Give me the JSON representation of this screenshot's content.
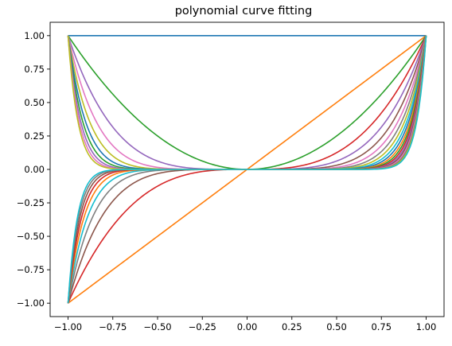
{
  "chart_data": {
    "type": "line",
    "title": "polynomial curve fitting",
    "xlabel": "",
    "ylabel": "",
    "xlim": [
      -1.1,
      1.1
    ],
    "ylim": [
      -1.1,
      1.1
    ],
    "x_ticks": [
      -1.0,
      -0.75,
      -0.5,
      -0.25,
      0.0,
      0.25,
      0.5,
      0.75,
      1.0
    ],
    "x_tick_labels": [
      "−1.00",
      "−0.75",
      "−0.50",
      "−0.25",
      "0.00",
      "0.25",
      "0.50",
      "0.75",
      "1.00"
    ],
    "y_ticks": [
      1.0,
      0.75,
      0.5,
      0.25,
      0.0,
      -0.25,
      -0.5,
      -0.75,
      -1.0
    ],
    "y_tick_labels": [
      "1.00",
      "0.75",
      "0.50",
      "0.25",
      "0.00",
      "−0.25",
      "−0.50",
      "−0.75",
      "−1.00"
    ],
    "grid": false,
    "legend": "none",
    "x": [
      -1.0,
      -0.9,
      -0.8,
      -0.7,
      -0.6,
      -0.5,
      -0.4,
      -0.3,
      -0.2,
      -0.1,
      0.0,
      0.1,
      0.2,
      0.3,
      0.4,
      0.5,
      0.6,
      0.7,
      0.8,
      0.9,
      1.0
    ],
    "series": [
      {
        "color": "#1f77b4",
        "values": [
          1,
          1,
          1,
          1,
          1,
          1,
          1,
          1,
          1,
          1,
          1,
          1,
          1,
          1,
          1,
          1,
          1,
          1,
          1,
          1,
          1
        ]
      },
      {
        "color": "#ff7f0e",
        "values": [
          -1,
          -0.9,
          -0.8,
          -0.7,
          -0.6,
          -0.5,
          -0.4,
          -0.3,
          -0.2,
          -0.1,
          0,
          0.1,
          0.2,
          0.3,
          0.4,
          0.5,
          0.6,
          0.7,
          0.8,
          0.9,
          1
        ]
      },
      {
        "color": "#2ca02c",
        "values": [
          1,
          0.81,
          0.64,
          0.49,
          0.36,
          0.25,
          0.16,
          0.09,
          0.04,
          0.01,
          0,
          0.01,
          0.04,
          0.09,
          0.16,
          0.25,
          0.36,
          0.49,
          0.64,
          0.81,
          1
        ]
      },
      {
        "color": "#d62728",
        "values": [
          -1,
          -0.729,
          -0.512,
          -0.343,
          -0.216,
          -0.125,
          -0.064,
          -0.027,
          -0.008,
          -0.001,
          0,
          0.001,
          0.008,
          0.027,
          0.064,
          0.125,
          0.216,
          0.343,
          0.512,
          0.729,
          1
        ]
      },
      {
        "color": "#9467bd",
        "values": [
          1,
          0.656,
          0.41,
          0.24,
          0.13,
          0.063,
          0.026,
          0.008,
          0.002,
          0,
          0,
          0,
          0.002,
          0.008,
          0.026,
          0.063,
          0.13,
          0.24,
          0.41,
          0.656,
          1
        ]
      },
      {
        "color": "#8c564b",
        "values": [
          -1,
          -0.59,
          -0.328,
          -0.168,
          -0.078,
          -0.031,
          -0.01,
          -0.002,
          0,
          0,
          0,
          0,
          0,
          0.002,
          0.01,
          0.031,
          0.078,
          0.168,
          0.328,
          0.59,
          1
        ]
      },
      {
        "color": "#e377c2",
        "values": [
          1,
          0.531,
          0.262,
          0.118,
          0.047,
          0.016,
          0.004,
          0.001,
          0,
          0,
          0,
          0,
          0,
          0.001,
          0.004,
          0.016,
          0.047,
          0.118,
          0.262,
          0.531,
          1
        ]
      },
      {
        "color": "#7f7f7f",
        "values": [
          -1,
          -0.478,
          -0.21,
          -0.082,
          -0.028,
          -0.008,
          -0.002,
          0,
          0,
          0,
          0,
          0,
          0,
          0,
          0.002,
          0.008,
          0.028,
          0.082,
          0.21,
          0.478,
          1
        ]
      },
      {
        "color": "#bcbd22",
        "values": [
          1,
          0.43,
          0.168,
          0.058,
          0.017,
          0.004,
          0.001,
          0,
          0,
          0,
          0,
          0,
          0,
          0,
          0.001,
          0.004,
          0.017,
          0.058,
          0.168,
          0.43,
          1
        ]
      },
      {
        "color": "#17becf",
        "values": [
          -1,
          -0.387,
          -0.134,
          -0.04,
          -0.01,
          -0.002,
          0,
          0,
          0,
          0,
          0,
          0,
          0,
          0,
          0,
          0.002,
          0.01,
          0.04,
          0.134,
          0.387,
          1
        ]
      },
      {
        "color": "#1f77b4",
        "values": [
          1,
          0.349,
          0.107,
          0.028,
          0.006,
          0.001,
          0,
          0,
          0,
          0,
          0,
          0,
          0,
          0,
          0,
          0.001,
          0.006,
          0.028,
          0.107,
          0.349,
          1
        ]
      },
      {
        "color": "#ff7f0e",
        "values": [
          -1,
          -0.314,
          -0.086,
          -0.02,
          -0.004,
          0,
          0,
          0,
          0,
          0,
          0,
          0,
          0,
          0,
          0,
          0,
          0.004,
          0.02,
          0.086,
          0.314,
          1
        ]
      },
      {
        "color": "#2ca02c",
        "values": [
          1,
          0.282,
          0.069,
          0.014,
          0.002,
          0,
          0,
          0,
          0,
          0,
          0,
          0,
          0,
          0,
          0,
          0,
          0.002,
          0.014,
          0.069,
          0.282,
          1
        ]
      },
      {
        "color": "#d62728",
        "values": [
          -1,
          -0.254,
          -0.055,
          -0.01,
          -0.001,
          0,
          0,
          0,
          0,
          0,
          0,
          0,
          0,
          0,
          0,
          0,
          0.001,
          0.01,
          0.055,
          0.254,
          1
        ]
      },
      {
        "color": "#9467bd",
        "values": [
          1,
          0.229,
          0.044,
          0.007,
          0.001,
          0,
          0,
          0,
          0,
          0,
          0,
          0,
          0,
          0,
          0,
          0,
          0.001,
          0.007,
          0.044,
          0.229,
          1
        ]
      },
      {
        "color": "#8c564b",
        "values": [
          -1,
          -0.206,
          -0.035,
          -0.005,
          0,
          0,
          0,
          0,
          0,
          0,
          0,
          0,
          0,
          0,
          0,
          0,
          0,
          0.005,
          0.035,
          0.206,
          1
        ]
      },
      {
        "color": "#e377c2",
        "values": [
          1,
          0.185,
          0.028,
          0.003,
          0,
          0,
          0,
          0,
          0,
          0,
          0,
          0,
          0,
          0,
          0,
          0,
          0,
          0.003,
          0.028,
          0.185,
          1
        ]
      },
      {
        "color": "#7f7f7f",
        "values": [
          -1,
          -0.167,
          -0.023,
          -0.002,
          0,
          0,
          0,
          0,
          0,
          0,
          0,
          0,
          0,
          0,
          0,
          0,
          0,
          0.002,
          0.023,
          0.167,
          1
        ]
      },
      {
        "color": "#bcbd22",
        "values": [
          1,
          0.15,
          0.018,
          0.002,
          0,
          0,
          0,
          0,
          0,
          0,
          0,
          0,
          0,
          0,
          0,
          0,
          0,
          0.002,
          0.018,
          0.15,
          1
        ]
      },
      {
        "color": "#17becf",
        "values": [
          -1,
          -0.135,
          -0.014,
          -0.001,
          0,
          0,
          0,
          0,
          0,
          0,
          0,
          0,
          0,
          0,
          0,
          0,
          0,
          0.001,
          0.014,
          0.135,
          1
        ]
      }
    ]
  }
}
